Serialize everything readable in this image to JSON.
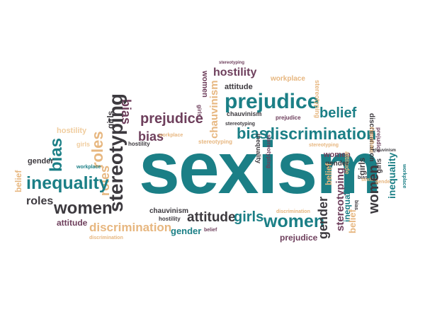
{
  "words": {
    "sexism": "sexism",
    "prejudice": "prejudice",
    "discrimination": "discrimination",
    "inequality": "inequality",
    "women": "women",
    "stereotyping": "stereotyping",
    "bias": "bias",
    "roles": "roles",
    "belief": "belief",
    "attitude": "attitude",
    "girls": "girls",
    "gender": "gender",
    "hostility": "hostility",
    "chauvinism": "chauvinism",
    "workplace": "workplace"
  },
  "colors": {
    "teal": "#1b7f86",
    "dark": "#3d3a3f",
    "plum": "#6e3f5c",
    "tan": "#e7b780",
    "light": "#f0cd9f"
  }
}
